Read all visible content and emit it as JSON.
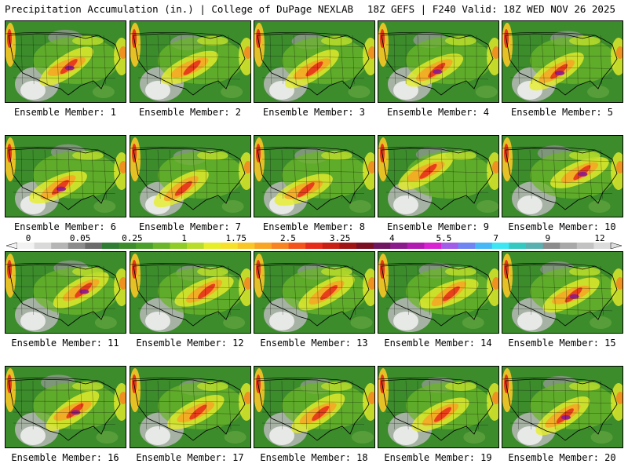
{
  "header": {
    "left": "Precipitation Accumulation (in.) | College of DuPage NEXLAB",
    "right": "18Z GEFS | F240 Valid: 18Z WED NOV 26 2025"
  },
  "panel_label_prefix": "Ensemble Member: ",
  "members": [
    1,
    2,
    3,
    4,
    5,
    6,
    7,
    8,
    9,
    10,
    11,
    12,
    13,
    14,
    15,
    16,
    17,
    18,
    19,
    20
  ],
  "colorbar": {
    "labels": [
      "0",
      "0.05",
      "0.25",
      "1",
      "1.75",
      "2.5",
      "3.25",
      "4",
      "5.5",
      "7",
      "9",
      "12"
    ],
    "colors": [
      "#f2f2f2",
      "#d9d9d9",
      "#b5b5b5",
      "#8c8c8c",
      "#6b6b6b",
      "#2e7d32",
      "#3c8c2c",
      "#4aa028",
      "#6bb52a",
      "#8fcc28",
      "#b8dc2a",
      "#e6ee2a",
      "#f6e02a",
      "#f8c626",
      "#f8a524",
      "#f78420",
      "#f2541c",
      "#e52b1a",
      "#c81e14",
      "#a01414",
      "#7a0e22",
      "#6e1660",
      "#8a1a8c",
      "#b11ab0",
      "#d822d2",
      "#a15ce8",
      "#6f86f2",
      "#47b8f6",
      "#3de6f2",
      "#34c9c0",
      "#5ab0b0",
      "#8c8c8c",
      "#a8a8a8",
      "#c2c2c2",
      "#dcdcdc"
    ]
  }
}
